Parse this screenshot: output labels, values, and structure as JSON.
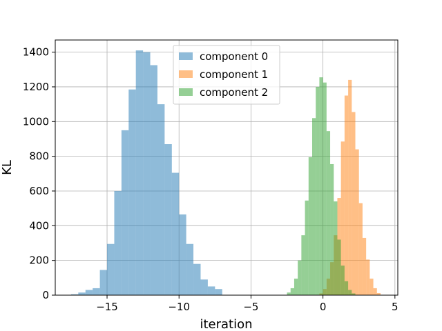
{
  "chart_data": {
    "type": "histogram",
    "title": "",
    "xlabel": "iteration",
    "ylabel": "KL",
    "xlim": [
      -18.6,
      5.2
    ],
    "ylim": [
      0,
      1470
    ],
    "xticks": [
      -15,
      -10,
      -5,
      0,
      5
    ],
    "xtick_labels": [
      "−15",
      "−10",
      "−5",
      "0",
      "5"
    ],
    "yticks": [
      0,
      200,
      400,
      600,
      800,
      1000,
      1200,
      1400
    ],
    "ytick_labels": [
      "0",
      "200",
      "400",
      "600",
      "800",
      "1000",
      "1200",
      "1400"
    ],
    "grid": true,
    "legend_position": "upper center",
    "series": [
      {
        "name": "component 0",
        "color": "#1f77b4",
        "alpha": 0.5,
        "bin_width": 0.5,
        "bins": [
          [
            -17.5,
            5
          ],
          [
            -17.0,
            15
          ],
          [
            -16.5,
            30
          ],
          [
            -16.0,
            40
          ],
          [
            -15.5,
            145
          ],
          [
            -15.0,
            295
          ],
          [
            -14.5,
            600
          ],
          [
            -14.0,
            950
          ],
          [
            -13.5,
            1185
          ],
          [
            -13.0,
            1410
          ],
          [
            -12.5,
            1400
          ],
          [
            -12.0,
            1325
          ],
          [
            -11.5,
            1100
          ],
          [
            -11.0,
            870
          ],
          [
            -10.5,
            705
          ],
          [
            -10.0,
            465
          ],
          [
            -9.5,
            295
          ],
          [
            -9.0,
            180
          ],
          [
            -8.5,
            90
          ],
          [
            -8.0,
            50
          ],
          [
            -7.5,
            35
          ]
        ]
      },
      {
        "name": "component 1",
        "color": "#ff7f0e",
        "alpha": 0.5,
        "bin_width": 0.25,
        "bins": [
          [
            -0.25,
            10
          ],
          [
            0.0,
            35
          ],
          [
            0.25,
            95
          ],
          [
            0.5,
            190
          ],
          [
            0.75,
            345
          ],
          [
            1.0,
            560
          ],
          [
            1.25,
            885
          ],
          [
            1.5,
            1150
          ],
          [
            1.75,
            1240
          ],
          [
            2.0,
            1055
          ],
          [
            2.25,
            840
          ],
          [
            2.5,
            530
          ],
          [
            2.75,
            330
          ],
          [
            3.0,
            205
          ],
          [
            3.25,
            95
          ],
          [
            3.5,
            40
          ],
          [
            3.75,
            12
          ]
        ]
      },
      {
        "name": "component 2",
        "color": "#2ca02c",
        "alpha": 0.5,
        "bin_width": 0.25,
        "bins": [
          [
            -2.5,
            15
          ],
          [
            -2.25,
            40
          ],
          [
            -2.0,
            95
          ],
          [
            -1.75,
            200
          ],
          [
            -1.5,
            345
          ],
          [
            -1.25,
            545
          ],
          [
            -1.0,
            795
          ],
          [
            -0.75,
            1020
          ],
          [
            -0.5,
            1200
          ],
          [
            -0.25,
            1255
          ],
          [
            0.0,
            1225
          ],
          [
            0.25,
            945
          ],
          [
            0.5,
            755
          ],
          [
            0.75,
            540
          ],
          [
            1.0,
            320
          ],
          [
            1.25,
            170
          ],
          [
            1.5,
            80
          ],
          [
            1.75,
            30
          ],
          [
            2.0,
            10
          ]
        ]
      }
    ]
  }
}
